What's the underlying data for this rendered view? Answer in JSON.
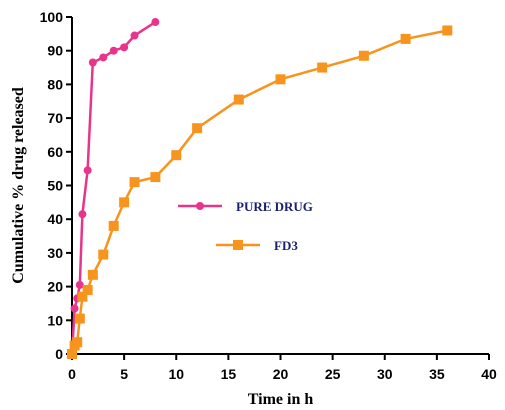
{
  "chart_data": {
    "type": "line",
    "xlabel": "Time in h",
    "ylabel": "Cumulative % drug released",
    "xlim": [
      0,
      40
    ],
    "ylim": [
      0,
      100
    ],
    "xticks": [
      0,
      5,
      10,
      15,
      20,
      25,
      30,
      35,
      40
    ],
    "yticks": [
      0,
      10,
      20,
      30,
      40,
      50,
      60,
      70,
      80,
      90,
      100
    ],
    "grid": false,
    "legend_position": "center",
    "series": [
      {
        "name": "PURE DRUG",
        "color": "#e8348c",
        "marker": "circle",
        "x": [
          0,
          0.25,
          0.5,
          0.75,
          1,
          1.5,
          2,
          3,
          4,
          5,
          6,
          8
        ],
        "y": [
          0,
          13.5,
          16.5,
          20.5,
          41.5,
          54.5,
          86.5,
          88,
          90,
          91,
          94.5,
          98.5
        ]
      },
      {
        "name": "FD3",
        "color": "#f7941d",
        "marker": "square",
        "x": [
          0,
          0.25,
          0.5,
          0.75,
          1,
          1.5,
          2,
          3,
          4,
          5,
          6,
          8,
          10,
          12,
          16,
          20,
          24,
          28,
          32,
          36
        ],
        "y": [
          0,
          2.5,
          3.5,
          10.5,
          17,
          19,
          23.5,
          29.5,
          38,
          45,
          51,
          52.5,
          59,
          67,
          75.5,
          81.5,
          85,
          88.5,
          93.5,
          96
        ]
      }
    ]
  }
}
